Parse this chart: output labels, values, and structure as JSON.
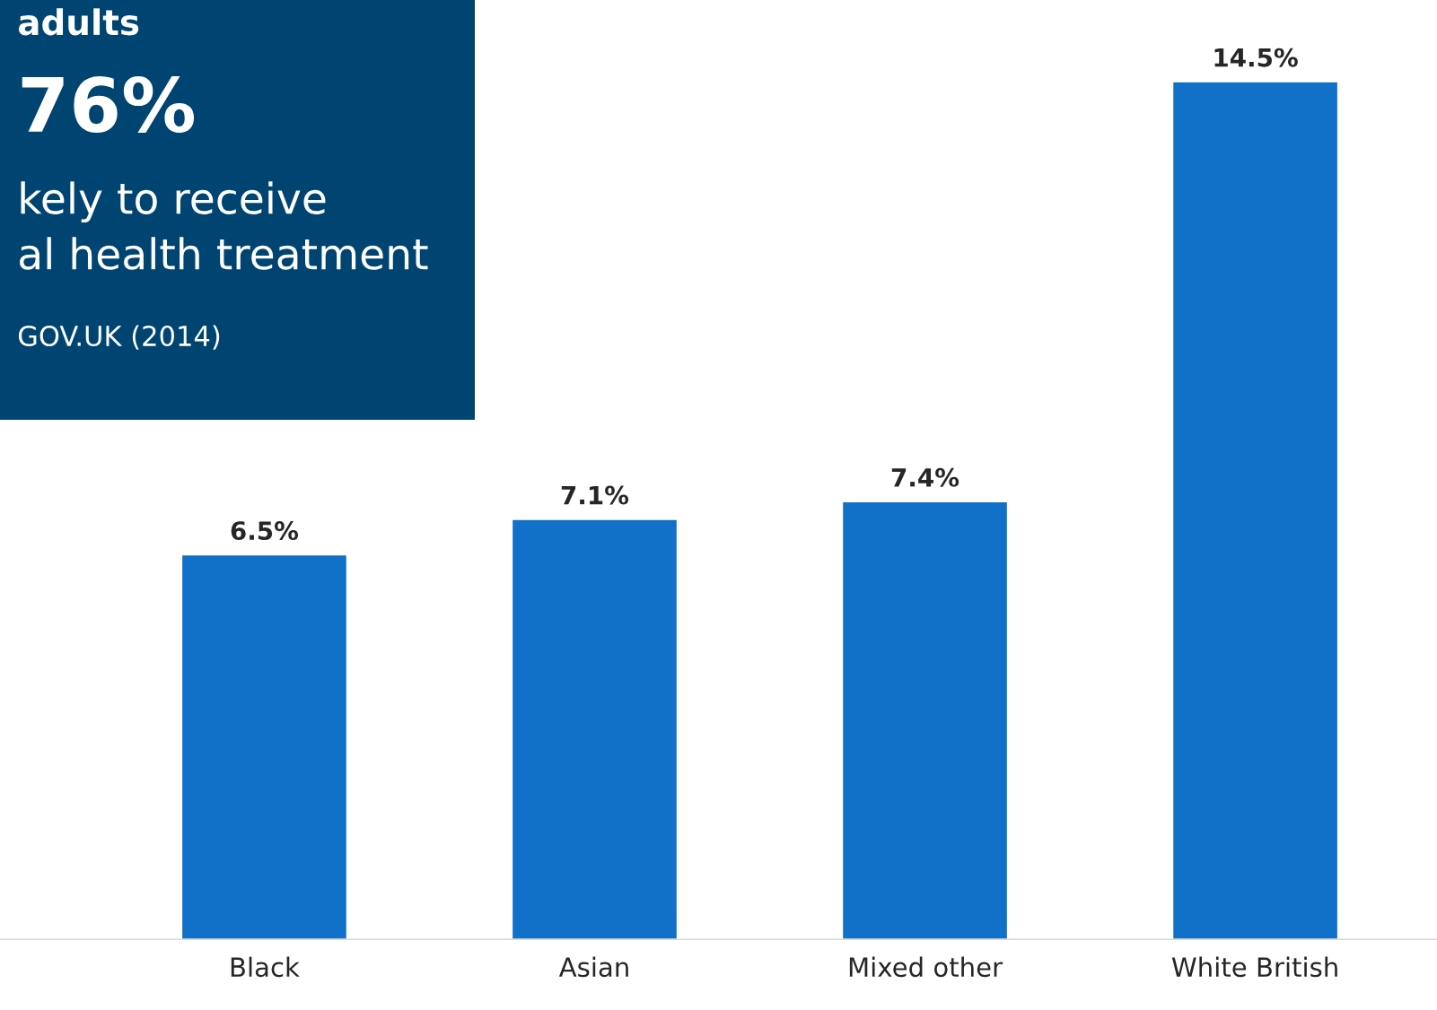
{
  "chart_data": {
    "type": "bar",
    "categories": [
      "Black",
      "Asian",
      "Mixed other",
      "White British"
    ],
    "values": [
      6.5,
      7.1,
      7.4,
      14.5
    ],
    "value_labels": [
      "6.5%",
      "7.1%",
      "7.4%",
      "14.5%"
    ],
    "color": "#1170c8",
    "annotations": [
      "adults",
      "76%",
      "kely to receive",
      "al health treatment",
      "GOV.UK (2014)"
    ],
    "grid": false,
    "legend": false
  }
}
